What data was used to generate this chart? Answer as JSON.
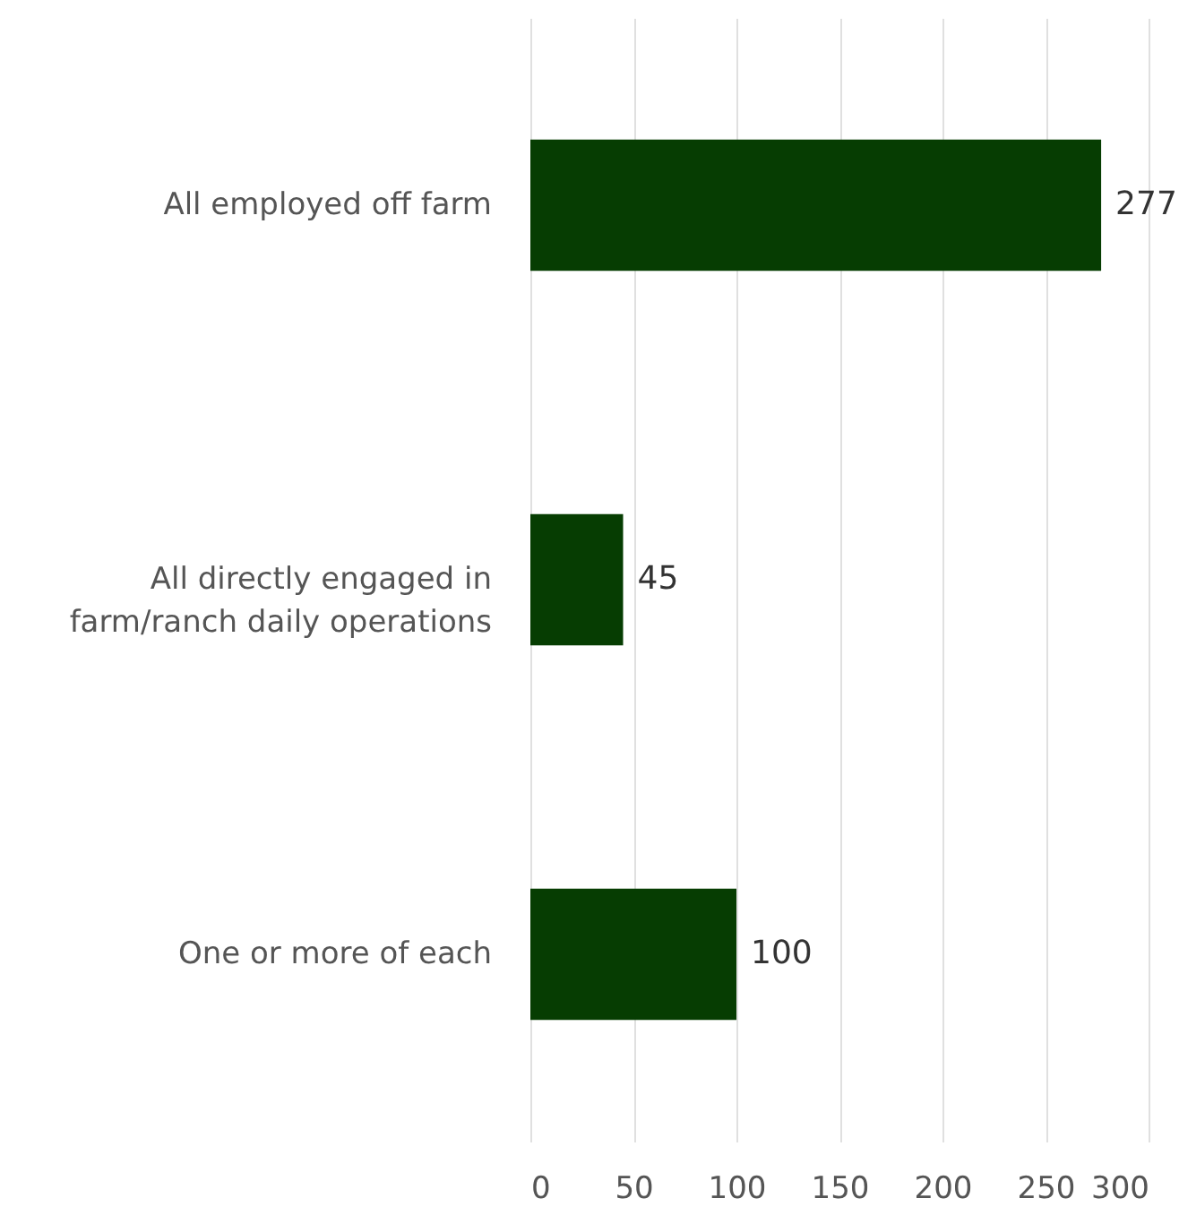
{
  "chart_data": {
    "type": "bar",
    "orientation": "horizontal",
    "categories": [
      "All employed off farm",
      "All directly engaged in farm/ranch daily operations",
      "One or more of each"
    ],
    "values": [
      277,
      45,
      100
    ],
    "color": "#063d02",
    "xlim": [
      0,
      300
    ],
    "xticks": [
      0,
      50,
      100,
      150,
      200,
      250,
      300
    ],
    "grid": "x",
    "data_labels": true
  }
}
